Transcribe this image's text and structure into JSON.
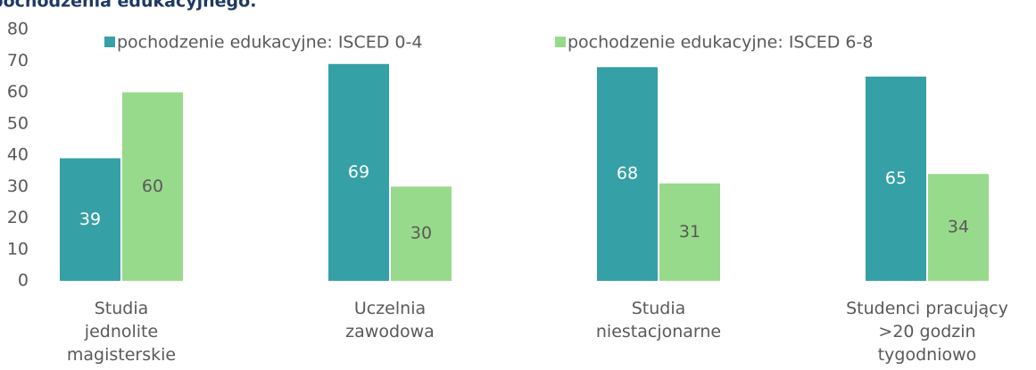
{
  "chart_data": {
    "type": "bar",
    "title": "pochodzenia edukacyjnego.",
    "categories": [
      "Studia\njednolite\nmagisterskie",
      "Uczelnia\nzawodowa",
      "Studia\nniestacjonarne",
      "Studenci pracujący\n>20 godzin\ntygodniowo"
    ],
    "series": [
      {
        "name": "pochodzenie edukacyjne: ISCED 0-4",
        "color": "#35a0a6",
        "values": [
          39,
          69,
          68,
          65
        ]
      },
      {
        "name": "pochodzenie edukacyjne: ISCED 6-8",
        "color": "#98da8b",
        "values": [
          60,
          30,
          31,
          34
        ]
      }
    ],
    "ylim": [
      0,
      80
    ],
    "yticks": [
      0,
      10,
      20,
      30,
      40,
      50,
      60,
      70,
      80
    ],
    "legend": "top"
  }
}
